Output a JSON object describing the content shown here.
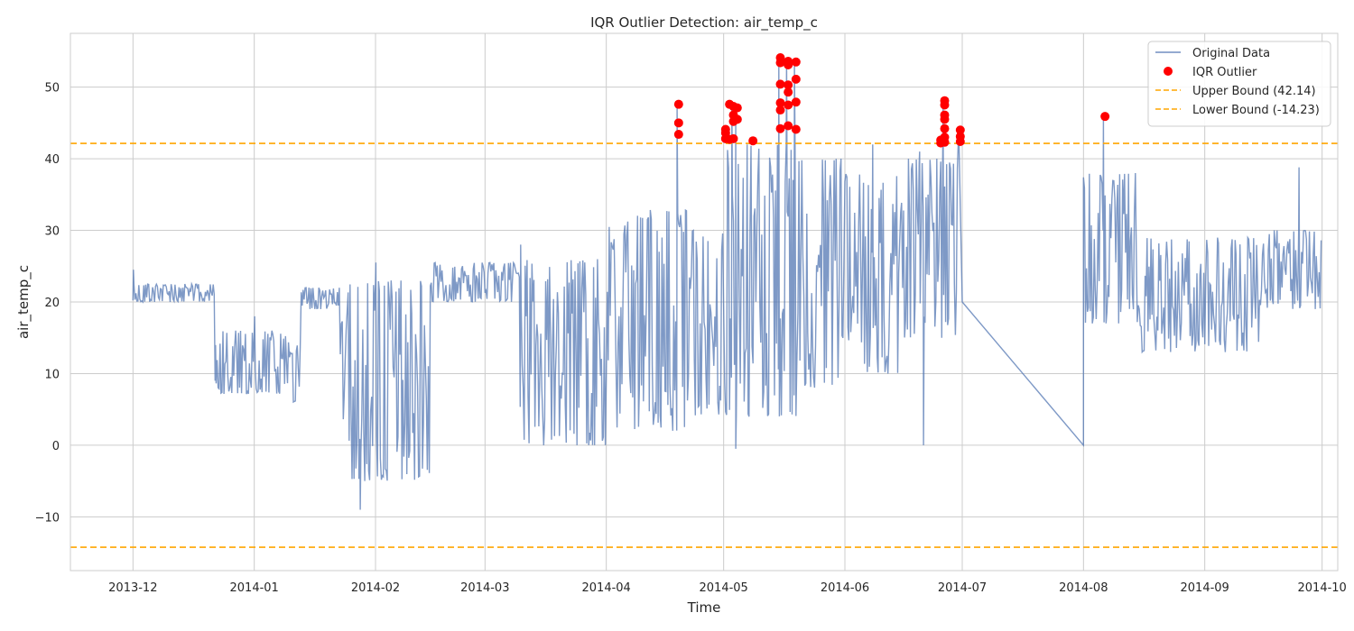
{
  "chart_data": {
    "type": "line",
    "title": "IQR Outlier Detection: air_temp_c",
    "xlabel": "Time",
    "ylabel": "air_temp_c",
    "xlim": [
      "2013-11-15",
      "2014-10-05"
    ],
    "ylim": [
      -17.5,
      57.5
    ],
    "x_ticks": [
      "2013-12",
      "2014-01",
      "2014-02",
      "2014-03",
      "2014-04",
      "2014-05",
      "2014-06",
      "2014-07",
      "2014-08",
      "2014-09",
      "2014-10"
    ],
    "y_ticks": [
      -10,
      0,
      10,
      20,
      30,
      40,
      50
    ],
    "y_tick_labels": [
      "−10",
      "0",
      "10",
      "20",
      "30",
      "40",
      "50"
    ],
    "grid": true,
    "legend_position": "top-right",
    "colors": {
      "series": "#4c72b0",
      "outlier": "#ff0000",
      "bound": "#ffa500",
      "grid": "#cccccc",
      "axes": "#cccccc"
    },
    "legend": [
      {
        "label": "Original Data",
        "kind": "line"
      },
      {
        "label": "IQR Outlier",
        "kind": "marker"
      },
      {
        "label": "Upper Bound (42.14)",
        "kind": "dashed"
      },
      {
        "label": "Lower Bound (-14.23)",
        "kind": "dashed"
      }
    ],
    "bounds": {
      "upper": 42.14,
      "lower": -14.23
    },
    "segments": [
      {
        "start": "2013-12-01",
        "end": "2013-12-22",
        "min": 20,
        "max": 22.5
      },
      {
        "start": "2013-12-22",
        "end": "2014-01-10",
        "min": 7,
        "max": 16
      },
      {
        "start": "2014-01-10",
        "end": "2014-01-13",
        "min": 6,
        "max": 14
      },
      {
        "start": "2014-01-13",
        "end": "2014-01-23",
        "min": 19,
        "max": 22
      },
      {
        "start": "2014-01-23",
        "end": "2014-02-15",
        "min": -5,
        "max": 23
      },
      {
        "start": "2014-02-15",
        "end": "2014-03-10",
        "min": 20,
        "max": 25.5
      },
      {
        "start": "2014-03-10",
        "end": "2014-04-01",
        "min": 0,
        "max": 26
      },
      {
        "start": "2014-04-01",
        "end": "2014-04-22",
        "min": 2,
        "max": 33
      },
      {
        "start": "2014-04-22",
        "end": "2014-05-01",
        "min": 4,
        "max": 30
      },
      {
        "start": "2014-05-01",
        "end": "2014-05-20",
        "min": 4,
        "max": 42
      },
      {
        "start": "2014-05-20",
        "end": "2014-06-01",
        "min": 8,
        "max": 40
      },
      {
        "start": "2014-06-01",
        "end": "2014-06-15",
        "min": 10,
        "max": 38
      },
      {
        "start": "2014-06-15",
        "end": "2014-06-30",
        "min": 15,
        "max": 40
      },
      {
        "start": "2014-07-01",
        "end": "2014-08-01",
        "min": 0,
        "max": 20,
        "kind": "gap"
      },
      {
        "start": "2014-08-01",
        "end": "2014-08-15",
        "min": 17,
        "max": 38
      },
      {
        "start": "2014-08-15",
        "end": "2014-09-15",
        "min": 13,
        "max": 29
      },
      {
        "start": "2014-09-15",
        "end": "2014-10-01",
        "min": 19,
        "max": 30
      }
    ],
    "spikes": [
      {
        "x": "2013-12-01",
        "y": 24.5
      },
      {
        "x": "2013-12-22",
        "y": 14
      },
      {
        "x": "2014-01-01",
        "y": 18
      },
      {
        "x": "2014-01-28",
        "y": -9
      },
      {
        "x": "2014-02-01",
        "y": 25.5
      },
      {
        "x": "2014-03-10",
        "y": 28
      },
      {
        "x": "2014-04-19",
        "y": 47.6
      },
      {
        "x": "2014-05-03",
        "y": 47.8
      },
      {
        "x": "2014-05-04",
        "y": 47.2
      },
      {
        "x": "2014-05-15",
        "y": 54.3
      },
      {
        "x": "2014-05-17",
        "y": 53.8
      },
      {
        "x": "2014-05-19",
        "y": 53.6
      },
      {
        "x": "2014-05-04",
        "y": -0.5
      },
      {
        "x": "2014-06-08",
        "y": 42
      },
      {
        "x": "2014-06-20",
        "y": 41
      },
      {
        "x": "2014-06-21",
        "y": 0
      },
      {
        "x": "2014-06-26",
        "y": 48.1
      },
      {
        "x": "2014-06-30",
        "y": 44.2
      },
      {
        "x": "2014-08-06",
        "y": 45.9
      },
      {
        "x": "2014-09-25",
        "y": 38.8
      }
    ],
    "outliers": [
      {
        "x": "2014-04-19",
        "y": 47.6
      },
      {
        "x": "2014-04-19",
        "y": 45.0
      },
      {
        "x": "2014-04-19",
        "y": 43.4
      },
      {
        "x": "2014-05-01",
        "y": 44.1
      },
      {
        "x": "2014-05-01",
        "y": 43.6
      },
      {
        "x": "2014-05-01",
        "y": 42.8
      },
      {
        "x": "2014-05-02",
        "y": 47.6
      },
      {
        "x": "2014-05-02",
        "y": 42.7
      },
      {
        "x": "2014-05-03",
        "y": 47.3
      },
      {
        "x": "2014-05-03",
        "y": 46.1
      },
      {
        "x": "2014-05-03",
        "y": 45.2
      },
      {
        "x": "2014-05-03",
        "y": 42.8
      },
      {
        "x": "2014-05-04",
        "y": 47.1
      },
      {
        "x": "2014-05-04",
        "y": 45.5
      },
      {
        "x": "2014-05-08",
        "y": 42.5
      },
      {
        "x": "2014-05-15",
        "y": 54.1
      },
      {
        "x": "2014-05-15",
        "y": 53.4
      },
      {
        "x": "2014-05-15",
        "y": 50.4
      },
      {
        "x": "2014-05-15",
        "y": 47.8
      },
      {
        "x": "2014-05-15",
        "y": 46.8
      },
      {
        "x": "2014-05-15",
        "y": 44.2
      },
      {
        "x": "2014-05-17",
        "y": 53.6
      },
      {
        "x": "2014-05-17",
        "y": 53.1
      },
      {
        "x": "2014-05-17",
        "y": 50.3
      },
      {
        "x": "2014-05-17",
        "y": 49.3
      },
      {
        "x": "2014-05-17",
        "y": 47.5
      },
      {
        "x": "2014-05-17",
        "y": 44.6
      },
      {
        "x": "2014-05-19",
        "y": 53.5
      },
      {
        "x": "2014-05-19",
        "y": 51.1
      },
      {
        "x": "2014-05-19",
        "y": 47.9
      },
      {
        "x": "2014-05-19",
        "y": 44.1
      },
      {
        "x": "2014-06-25",
        "y": 42.6
      },
      {
        "x": "2014-06-25",
        "y": 42.2
      },
      {
        "x": "2014-06-26",
        "y": 48.1
      },
      {
        "x": "2014-06-26",
        "y": 47.5
      },
      {
        "x": "2014-06-26",
        "y": 46.1
      },
      {
        "x": "2014-06-26",
        "y": 45.5
      },
      {
        "x": "2014-06-26",
        "y": 44.2
      },
      {
        "x": "2014-06-26",
        "y": 43.0
      },
      {
        "x": "2014-06-26",
        "y": 42.3
      },
      {
        "x": "2014-06-30",
        "y": 44.0
      },
      {
        "x": "2014-06-30",
        "y": 43.1
      },
      {
        "x": "2014-06-30",
        "y": 42.4
      },
      {
        "x": "2014-08-06",
        "y": 45.9
      }
    ]
  }
}
